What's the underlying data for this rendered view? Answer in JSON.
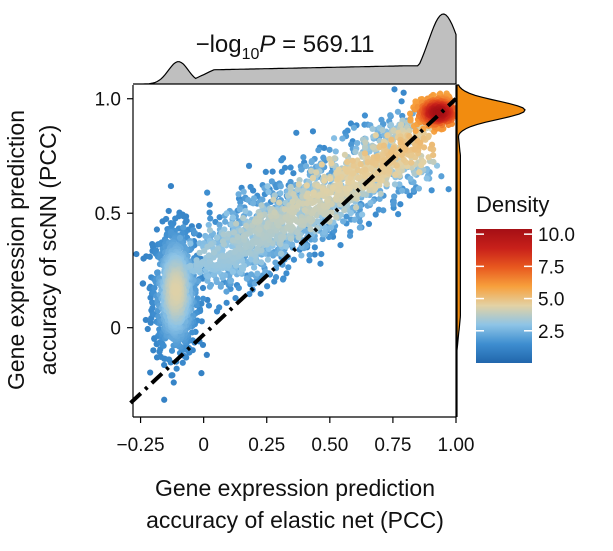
{
  "chart_data": {
    "type": "scatter",
    "title": {
      "prefix": "−log",
      "subscript": "10",
      "italic": "P",
      "suffix": " = 569.11"
    },
    "xlabel": [
      "Gene expression prediction",
      "accuracy of elastic net (PCC)"
    ],
    "ylabel": [
      "Gene expression prediction",
      "accuracy of scNN (PCC)"
    ],
    "xlim": [
      -0.28,
      1.0
    ],
    "ylim": [
      -0.39,
      1.06
    ],
    "x_ticks": [
      -0.25,
      0,
      0.25,
      0.5,
      0.75,
      1.0
    ],
    "x_tick_labels": [
      "−0.25",
      "0",
      "0.25",
      "0.50",
      "0.75",
      "1.00"
    ],
    "y_ticks": [
      0,
      0.5,
      1.0
    ],
    "y_tick_labels": [
      "0",
      "0.5",
      "1.0"
    ],
    "reference_line": {
      "style": "dash-dot",
      "color": "#000000",
      "x": [
        -0.25,
        1.0
      ],
      "y": [
        -0.25,
        1.0
      ]
    },
    "points_color_by": "Density",
    "clusters": [
      {
        "name": "low",
        "center_x": -0.11,
        "center_y": 0.16,
        "spread_x": 0.045,
        "spread_y": 0.14,
        "count": 900
      },
      {
        "name": "band",
        "from_x": 0.02,
        "to_x": 0.85,
        "from_y": 0.27,
        "to_y": 0.82,
        "spread_y": 0.09,
        "count": 1700
      },
      {
        "name": "high",
        "center_x": 0.93,
        "center_y": 0.94,
        "spread_x": 0.04,
        "spread_y": 0.03,
        "count": 450
      }
    ],
    "grid": false,
    "legend": {
      "title": "Density",
      "position": "right",
      "min": 0,
      "max": 10.4,
      "ticks": [
        2.5,
        5.0,
        7.5,
        10.0
      ],
      "tick_labels": [
        "2.5",
        "5.0",
        "7.5",
        "10.0"
      ],
      "colors": [
        "#2166ac",
        "#3e8ed0",
        "#8ec4e6",
        "#e3d2a4",
        "#f7a03c",
        "#e8581f",
        "#c8201a",
        "#a50f15"
      ]
    },
    "marginal_top": {
      "fill": "#bfbfbf",
      "peaks": [
        {
          "x": -0.1,
          "height": 0.32,
          "width": 0.04
        },
        {
          "x": 0.95,
          "height": 1.0,
          "width": 0.06
        }
      ],
      "plateau": {
        "from": 0.0,
        "to": 0.85,
        "height": 0.2
      }
    },
    "marginal_right": {
      "fill": "#f28c0f",
      "peaks": [
        {
          "y": 0.95,
          "height": 1.0,
          "width": 0.04
        }
      ],
      "plateau": {
        "from": 0.0,
        "to": 0.8,
        "height": 0.05
      }
    }
  }
}
